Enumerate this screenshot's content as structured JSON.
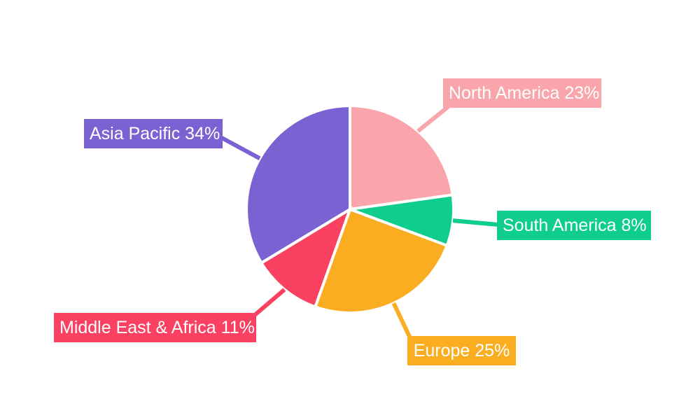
{
  "chart_data": {
    "type": "pie",
    "legend_position": "outside-labels-with-leader-lines",
    "background": "#FFFFFF",
    "label_text_color": "#FFFFFF",
    "slice_border_color": "#FFFFFF",
    "start_angle_deg": 0,
    "direction": "clockwise",
    "categories": [
      "North America",
      "South America",
      "Europe",
      "Middle East & Africa",
      "Asia Pacific"
    ],
    "values": [
      23,
      8,
      25,
      11,
      34
    ],
    "segments": [
      {
        "label": "North America",
        "value": 23,
        "display": "North America 23%",
        "color": "#F9A5AB"
      },
      {
        "label": "South America",
        "value": 8,
        "display": "South America 8%",
        "color": "#0ECD8E"
      },
      {
        "label": "Europe",
        "value": 25,
        "display": "Europe 25%",
        "color": "#FBAD21"
      },
      {
        "label": "Middle East & Africa",
        "value": 11,
        "display": "Middle East & Africa 11%",
        "color": "#FA4161"
      },
      {
        "label": "Asia Pacific",
        "value": 34,
        "display": "Asia Pacific 34%",
        "color": "#7B62D3"
      }
    ]
  }
}
